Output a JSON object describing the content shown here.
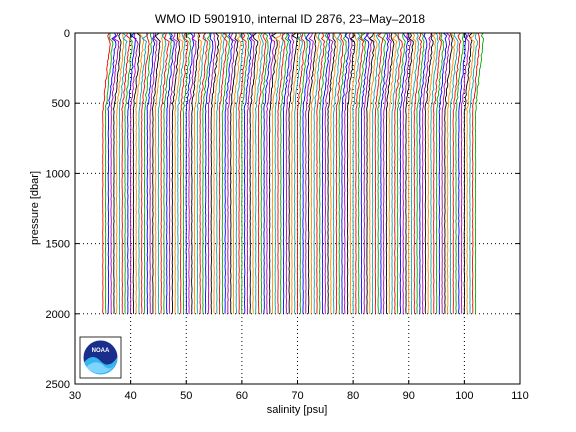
{
  "chart_data": {
    "type": "line",
    "title": "WMO ID 5901910, internal ID 2876, 23–May–2018",
    "xlabel": "salinity [psu]",
    "ylabel": "pressure [dbar]",
    "xlim": [
      30,
      110
    ],
    "ylim": [
      0,
      2500
    ],
    "y_reversed": true,
    "xticks": [
      "30",
      "40",
      "50",
      "60",
      "70",
      "80",
      "90",
      "100",
      "110"
    ],
    "yticks": [
      "0",
      "500",
      "1000",
      "1500",
      "2000",
      "2500"
    ],
    "grid": true,
    "legend": "none",
    "waterfall": {
      "profile_count": 135,
      "first_deep_salinity": 35.0,
      "offset_per_profile": 0.5,
      "shallow_salinity_increase": 1.3,
      "max_pressure": 2000,
      "colors": [
        "#ff0000",
        "#00aa00",
        "#0000ff",
        "#aa00aa",
        "#000000",
        "#ff8800",
        "#00aaaa"
      ]
    },
    "logo": "NOAA"
  }
}
